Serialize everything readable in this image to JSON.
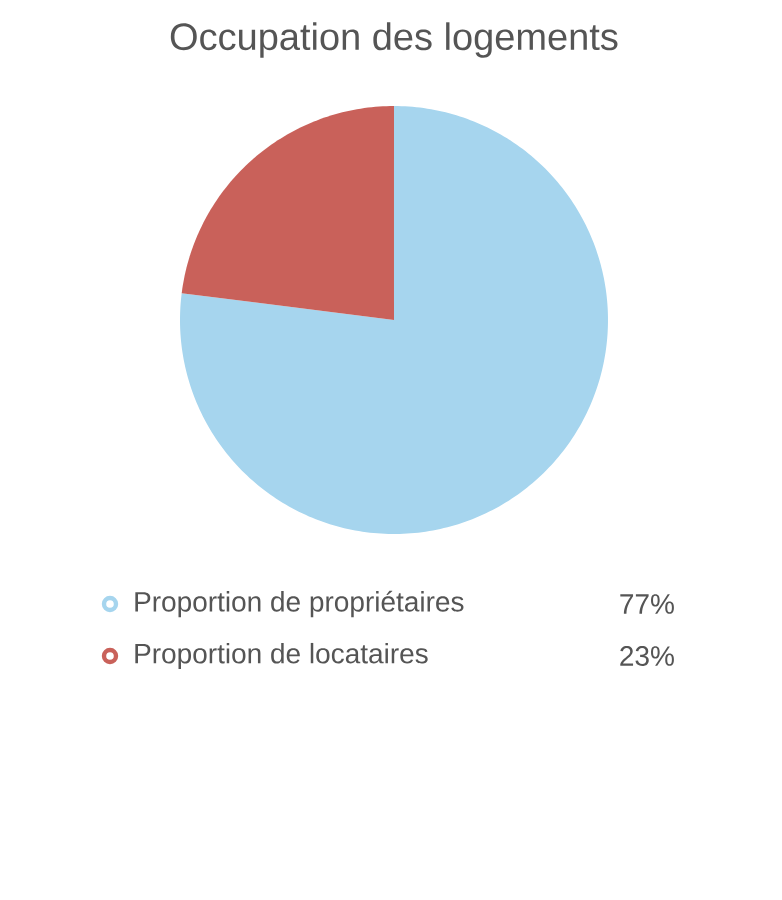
{
  "chart_data": {
    "type": "pie",
    "title": "Occupation des logements",
    "categories": [
      "Proportion de propriétaires",
      "Proportion de locataires"
    ],
    "values": [
      77,
      23
    ],
    "colors": [
      "#a6d5ee",
      "#c9615a"
    ],
    "value_labels": [
      "77%",
      "23%"
    ],
    "legend": "bottom"
  }
}
